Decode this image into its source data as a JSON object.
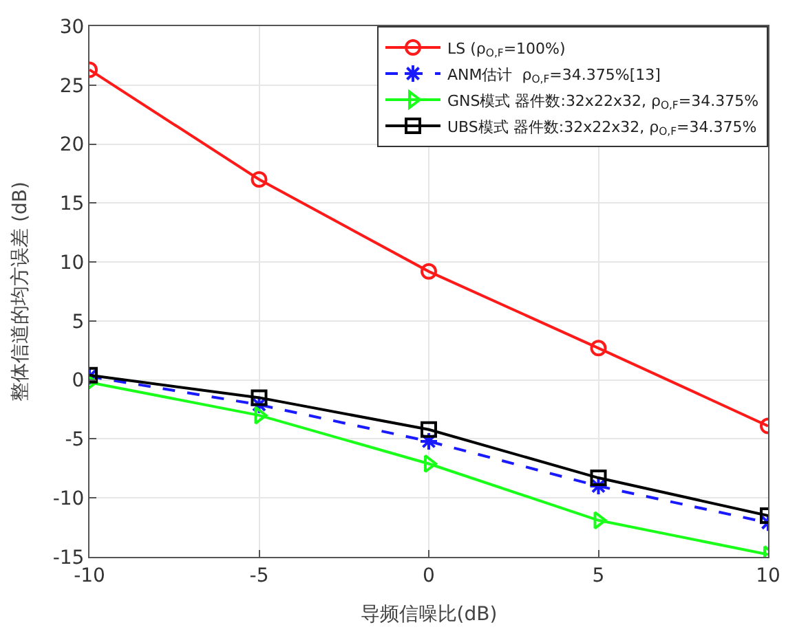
{
  "chart_data": {
    "type": "line",
    "xlabel": "导频信噪比(dB)",
    "ylabel": "整体信道的均方误差 (dB)",
    "x": [
      -10,
      -5,
      0,
      5,
      10
    ],
    "xlim": [
      -10,
      10
    ],
    "xticks": [
      -10,
      -5,
      0,
      5,
      10
    ],
    "ylim": [
      -15,
      30
    ],
    "yticks": [
      -15,
      -10,
      -5,
      0,
      5,
      10,
      15,
      20,
      25,
      30
    ],
    "grid": true,
    "legend": "top right",
    "series": [
      {
        "name": "LS (ρ$_{O,F}$=100%)",
        "color": "#ff1a1a",
        "marker": "circle",
        "line_style": "solid",
        "values": [
          26.3,
          17.0,
          9.2,
          2.7,
          -3.9
        ]
      },
      {
        "name": "ANM估计  ρ$_{O,F}$=34.375%[13]",
        "color": "#1a1aff",
        "marker": "cross",
        "line_style": "dashed",
        "values": [
          0.3,
          -2.1,
          -5.2,
          -9.0,
          -12.1
        ]
      },
      {
        "name": "GNS模式 器件数:32x22x32, ρ$_{O,F}$=34.375%",
        "color": "#1aff1a",
        "marker": "triangle",
        "line_style": "solid",
        "values": [
          -0.2,
          -3.0,
          -7.1,
          -11.9,
          -14.8
        ]
      },
      {
        "name": "UBS模式 器件数:32x22x32, ρ$_{O,F}$=34.375%",
        "color": "#000000",
        "marker": "square",
        "line_style": "solid",
        "values": [
          0.4,
          -1.5,
          -4.2,
          -8.3,
          -11.5
        ]
      }
    ]
  }
}
